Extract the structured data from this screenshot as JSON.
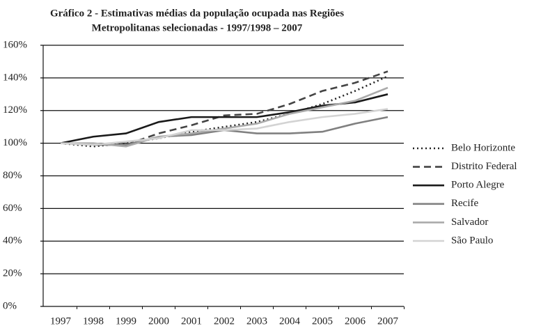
{
  "chart_data": {
    "type": "line",
    "title": [
      "Gráfico 2 - Estimativas médias da população ocupada nas Regiões",
      "Metropolitanas selecionadas - 1997/1998 – 2007"
    ],
    "categories": [
      "1997",
      "1998",
      "1999",
      "2000",
      "2001",
      "2002",
      "2003",
      "2004",
      "2005",
      "2006",
      "2007"
    ],
    "series": [
      {
        "name": "Belo Horizonte",
        "color": "#222222",
        "line_style": "dotted",
        "values": [
          100,
          98,
          100,
          103,
          107,
          110,
          113,
          118,
          124,
          132,
          141
        ]
      },
      {
        "name": "Distrito Federal",
        "color": "#444444",
        "line_style": "dashed",
        "values": [
          100,
          99,
          99,
          106,
          111,
          117,
          118,
          124,
          132,
          137,
          144
        ]
      },
      {
        "name": "Porto Alegre",
        "color": "#1a1a1a",
        "line_style": "solid",
        "values": [
          100,
          104,
          106,
          113,
          116,
          116,
          116,
          119,
          123,
          125,
          130
        ]
      },
      {
        "name": "Recife",
        "color": "#808080",
        "line_style": "solid",
        "values": [
          100,
          99,
          99,
          104,
          105,
          108,
          106,
          106,
          107,
          112,
          116
        ]
      },
      {
        "name": "Salvador",
        "color": "#aaaaaa",
        "line_style": "solid",
        "values": [
          100,
          100,
          98,
          104,
          106,
          109,
          112,
          118,
          122,
          126,
          134
        ]
      },
      {
        "name": "São Paulo",
        "color": "#d3d3d3",
        "line_style": "solid",
        "values": [
          100,
          99,
          101,
          103,
          108,
          108,
          109,
          113,
          116,
          118,
          121
        ]
      }
    ],
    "ylim": [
      0,
      160
    ],
    "yticks": [
      {
        "value": 0,
        "label": "0%"
      },
      {
        "value": 20,
        "label": "20%"
      },
      {
        "value": 40,
        "label": "40%"
      },
      {
        "value": 60,
        "label": "60%"
      },
      {
        "value": 80,
        "label": "80%"
      },
      {
        "value": 100,
        "label": "100%"
      },
      {
        "value": 120,
        "label": "120%"
      },
      {
        "value": 140,
        "label": "140%"
      },
      {
        "value": 160,
        "label": "160%"
      }
    ],
    "grid": true,
    "legend": "right"
  }
}
